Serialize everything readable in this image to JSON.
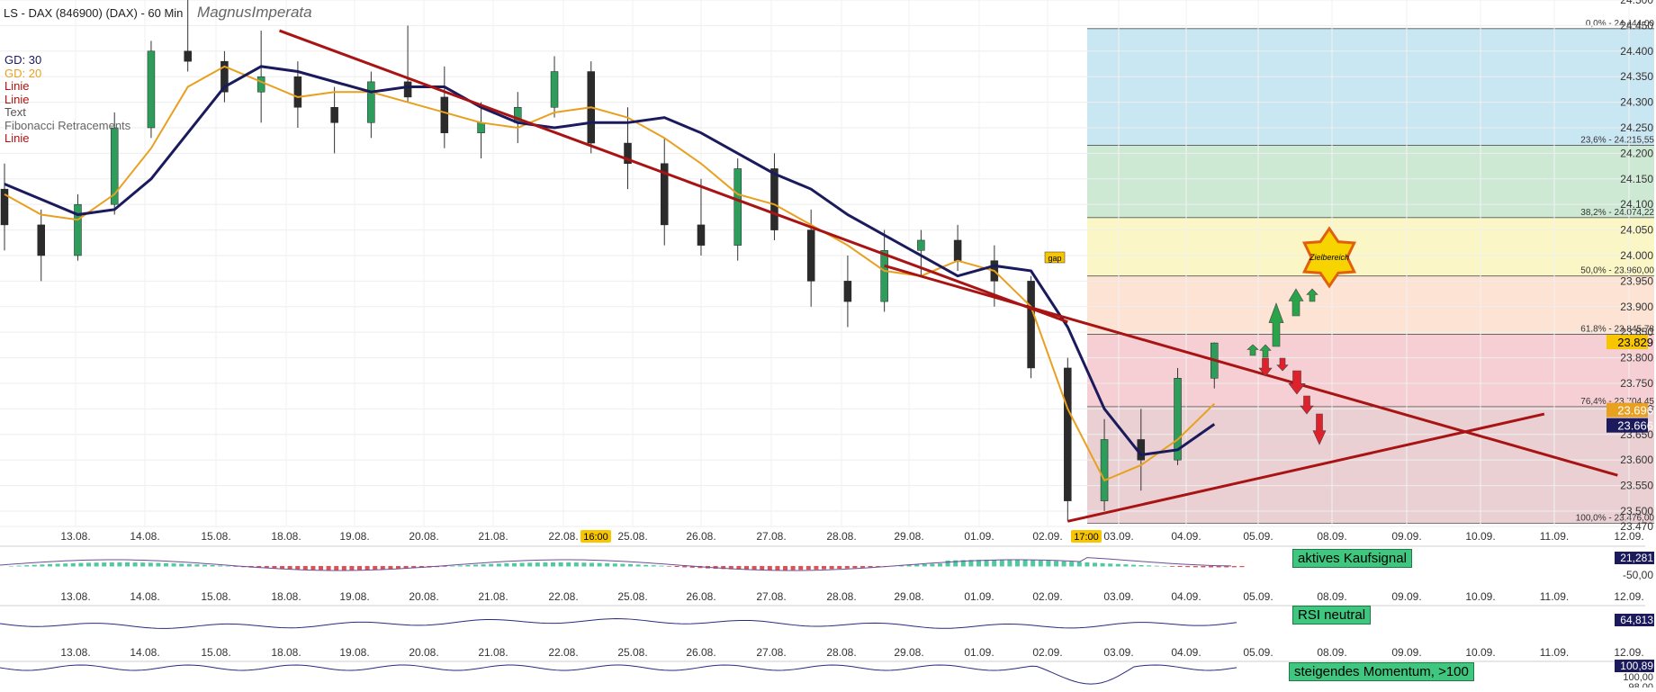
{
  "header": {
    "title": "LS - DAX (846900) (DAX) - 60 Min",
    "author": "MagnusImperata"
  },
  "legend": [
    {
      "label": "GD: 30",
      "color": "#1a1a5c"
    },
    {
      "label": "GD: 20",
      "color": "#e8a020"
    },
    {
      "label": "Linie",
      "color": "#b01010"
    },
    {
      "label": "Linie",
      "color": "#b01010"
    },
    {
      "label": "Text",
      "color": "#555555"
    },
    {
      "label": "Fibonacci Retracements",
      "color": "#666666"
    },
    {
      "label": "Linie",
      "color": "#b01010"
    }
  ],
  "annotations": {
    "gap": "gap",
    "target": "Zielbereich",
    "time_1600": "16:00",
    "time_1700": "17:00"
  },
  "price_labels": {
    "current": "23.829",
    "ma20": "23.696",
    "ma30": "23.666"
  },
  "signals": {
    "macd": "aktives Kaufsignal",
    "rsi": "RSI neutral",
    "momentum": "steigendes Momentum, >100"
  },
  "indicator_values": {
    "macd_value": "21,281",
    "macd_tick": "-50,00",
    "rsi_value": "64,813",
    "mom_value": "100,89",
    "mom_tick1": "100,00",
    "mom_tick2": "98,00"
  },
  "chart_data": {
    "type": "candlestick",
    "title": "LS - DAX (846900) (DAX) - 60 Min",
    "ylim": [
      23470,
      24500
    ],
    "y_ticks": [
      23470,
      23500,
      23550,
      23600,
      23650,
      23700,
      23750,
      23800,
      23850,
      23900,
      23950,
      24000,
      24050,
      24100,
      24150,
      24200,
      24250,
      24300,
      24350,
      24400,
      24450,
      24500
    ],
    "y_tick_labels": [
      "23.470",
      "23.500",
      "23.550",
      "23.600",
      "23.650",
      "23.700",
      "23.750",
      "23.800",
      "23.850",
      "23.900",
      "23.950",
      "24.000",
      "24.050",
      "24.100",
      "24.150",
      "24.200",
      "24.250",
      "24.300",
      "24.350",
      "24.400",
      "24.450",
      "24.500"
    ],
    "x_ticks": [
      "13.08.",
      "14.08.",
      "15.08.",
      "18.08.",
      "19.08.",
      "20.08.",
      "21.08.",
      "22.08.",
      "25.08.",
      "26.08.",
      "27.08.",
      "28.08.",
      "29.08.",
      "01.09.",
      "02.09.",
      "03.09.",
      "04.09.",
      "05.09.",
      "08.09.",
      "09.09.",
      "10.09.",
      "11.09.",
      "12.09."
    ],
    "fibonacci": [
      {
        "label": "0,0% - 24.444,00",
        "value": 24444.0,
        "fill": "#c9e6f3"
      },
      {
        "label": "23,6% - 24.215,55",
        "value": 24215.55,
        "fill": "#cde9d4"
      },
      {
        "label": "38,2% - 24.074,22",
        "value": 24074.22,
        "fill": "#fbf6c6"
      },
      {
        "label": "50,0% - 23.960,00",
        "value": 23960.0,
        "fill": "#fde3d3"
      },
      {
        "label": "61,8% - 23.845,78",
        "value": 23845.78,
        "fill": "#f6cfd4"
      },
      {
        "label": "76,4% - 23.704,45",
        "value": 23704.45,
        "fill": "#ead0d3"
      },
      {
        "label": "100,0% - 23.476,00",
        "value": 23476.0,
        "fill": null
      }
    ],
    "ma30": [
      [
        0,
        24140
      ],
      [
        1,
        24110
      ],
      [
        2,
        24080
      ],
      [
        3,
        24090
      ],
      [
        4,
        24150
      ],
      [
        5,
        24240
      ],
      [
        6,
        24330
      ],
      [
        7,
        24370
      ],
      [
        8,
        24360
      ],
      [
        9,
        24340
      ],
      [
        10,
        24320
      ],
      [
        11,
        24330
      ],
      [
        12,
        24330
      ],
      [
        13,
        24290
      ],
      [
        14,
        24260
      ],
      [
        15,
        24250
      ],
      [
        16,
        24260
      ],
      [
        17,
        24260
      ],
      [
        18,
        24270
      ],
      [
        19,
        24240
      ],
      [
        20,
        24200
      ],
      [
        21,
        24160
      ],
      [
        22,
        24130
      ],
      [
        23,
        24080
      ],
      [
        24,
        24040
      ],
      [
        25,
        24000
      ],
      [
        26,
        23960
      ],
      [
        27,
        23980
      ],
      [
        28,
        23970
      ],
      [
        29,
        23860
      ],
      [
        30,
        23700
      ],
      [
        31,
        23610
      ],
      [
        32,
        23620
      ],
      [
        33,
        23670
      ]
    ],
    "ma20": [
      [
        0,
        24120
      ],
      [
        1,
        24080
      ],
      [
        2,
        24070
      ],
      [
        3,
        24120
      ],
      [
        4,
        24210
      ],
      [
        5,
        24330
      ],
      [
        6,
        24370
      ],
      [
        7,
        24340
      ],
      [
        8,
        24310
      ],
      [
        9,
        24320
      ],
      [
        10,
        24320
      ],
      [
        11,
        24300
      ],
      [
        12,
        24280
      ],
      [
        13,
        24260
      ],
      [
        14,
        24250
      ],
      [
        15,
        24280
      ],
      [
        16,
        24290
      ],
      [
        17,
        24270
      ],
      [
        18,
        24230
      ],
      [
        19,
        24180
      ],
      [
        20,
        24120
      ],
      [
        21,
        24100
      ],
      [
        22,
        24060
      ],
      [
        23,
        24020
      ],
      [
        24,
        23970
      ],
      [
        25,
        23960
      ],
      [
        26,
        23990
      ],
      [
        27,
        23970
      ],
      [
        28,
        23900
      ],
      [
        29,
        23700
      ],
      [
        30,
        23560
      ],
      [
        31,
        23590
      ],
      [
        32,
        23640
      ],
      [
        33,
        23710
      ]
    ],
    "ohlc": [
      [
        0,
        24130,
        24180,
        24010,
        24060
      ],
      [
        1,
        24060,
        24090,
        23950,
        24000
      ],
      [
        2,
        24000,
        24120,
        23990,
        24100
      ],
      [
        3,
        24100,
        24280,
        24080,
        24250
      ],
      [
        4,
        24250,
        24420,
        24230,
        24400
      ],
      [
        5,
        24400,
        24510,
        24360,
        24380
      ],
      [
        6,
        24380,
        24400,
        24300,
        24320
      ],
      [
        7,
        24320,
        24440,
        24260,
        24350
      ],
      [
        8,
        24350,
        24380,
        24250,
        24290
      ],
      [
        9,
        24290,
        24330,
        24200,
        24260
      ],
      [
        10,
        24260,
        24360,
        24230,
        24340
      ],
      [
        11,
        24340,
        24450,
        24300,
        24310
      ],
      [
        12,
        24310,
        24370,
        24210,
        24240
      ],
      [
        13,
        24240,
        24300,
        24190,
        24260
      ],
      [
        14,
        24260,
        24320,
        24220,
        24290
      ],
      [
        15,
        24290,
        24390,
        24270,
        24360
      ],
      [
        16,
        24360,
        24380,
        24200,
        24220
      ],
      [
        17,
        24220,
        24290,
        24130,
        24180
      ],
      [
        18,
        24180,
        24230,
        24020,
        24060
      ],
      [
        19,
        24060,
        24150,
        24000,
        24020
      ],
      [
        20,
        24020,
        24190,
        23990,
        24170
      ],
      [
        21,
        24170,
        24200,
        24030,
        24050
      ],
      [
        22,
        24050,
        24090,
        23900,
        23950
      ],
      [
        23,
        23950,
        24000,
        23860,
        23910
      ],
      [
        24,
        23910,
        24050,
        23890,
        24010
      ],
      [
        25,
        24010,
        24050,
        23960,
        24030
      ],
      [
        26,
        24030,
        24060,
        23970,
        23990
      ],
      [
        27,
        23990,
        24020,
        23900,
        23950
      ],
      [
        28,
        23950,
        23960,
        23760,
        23780
      ],
      [
        29,
        23780,
        23800,
        23480,
        23520
      ],
      [
        30,
        23520,
        23680,
        23500,
        23640
      ],
      [
        31,
        23640,
        23700,
        23540,
        23600
      ],
      [
        32,
        23600,
        23780,
        23590,
        23760
      ],
      [
        33,
        23760,
        23830,
        23740,
        23829
      ]
    ],
    "lines": [
      {
        "name": "Linie",
        "from": [
          7.5,
          24440
        ],
        "to": [
          29.0,
          23870
        ]
      },
      {
        "name": "Linie",
        "from": [
          24.0,
          23980
        ],
        "to": [
          44.0,
          23570
        ]
      },
      {
        "name": "Linie",
        "from": [
          29.0,
          23480
        ],
        "to": [
          42.0,
          23690
        ]
      }
    ],
    "grid": true,
    "legend_position": "top-left"
  }
}
